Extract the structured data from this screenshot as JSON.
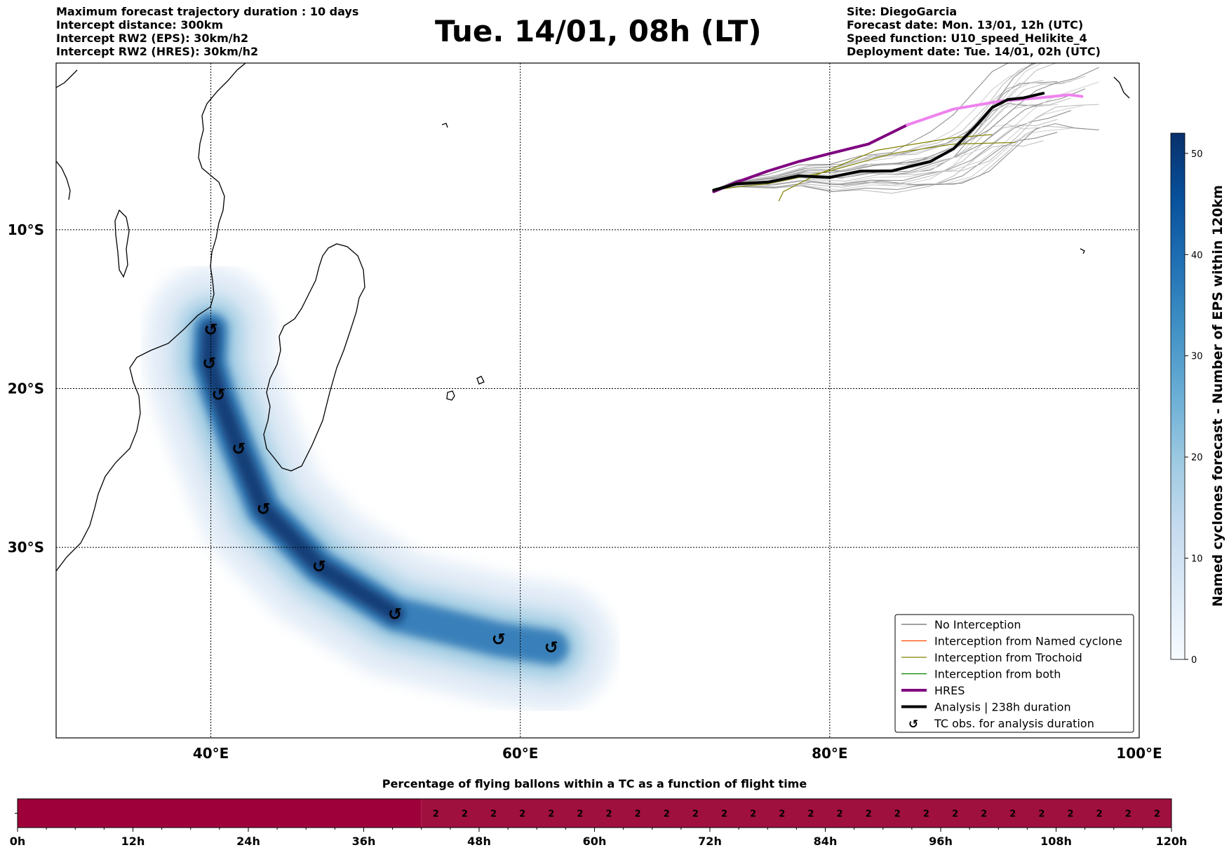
{
  "header": {
    "left": [
      "Maximum forecast trajectory duration : 10 days",
      "Intercept distance: 300km",
      "Intercept RW2 (EPS):  30km/h2",
      "Intercept RW2 (HRES): 30km/h2"
    ],
    "title": "Tue. 14/01, 08h (LT)",
    "right": [
      "Site: DiegoGarcia",
      "Forecast date: Mon. 13/01, 12h (UTC)",
      "Speed function: U10_speed_Helikite_4",
      "Deployment date: Tue. 14/01, 02h (UTC)"
    ]
  },
  "colors": {
    "blue_dark": "#08306b",
    "blue_light": "#deebf7",
    "hres": "#800080",
    "hres_light": "#ee82ee",
    "analysis": "#000000",
    "no_interception": "#696969",
    "named_cyclone": "#ff4500",
    "trochoid": "#808000",
    "both": "#008000",
    "bar": "#9e003a"
  },
  "chart_data": [
    {
      "type": "map",
      "x_ticks": [
        "40°E",
        "60°E",
        "80°E",
        "100°E"
      ],
      "x_tick_values": [
        40,
        60,
        80,
        100
      ],
      "y_ticks": [
        "10°S",
        "20°S",
        "30°S"
      ],
      "y_tick_values": [
        -10,
        -20,
        -30
      ],
      "xlim": [
        30,
        100
      ],
      "ylim": [
        -42,
        0.5
      ],
      "grid": true,
      "legend_position": "lower-right",
      "legend": [
        {
          "label": "No Interception",
          "color": "#696969",
          "style": "thin-line"
        },
        {
          "label": "Interception from Named cyclone",
          "color": "#ff4500",
          "style": "thin-line"
        },
        {
          "label": "Interception from Trochoid",
          "color": "#808000",
          "style": "thin-line"
        },
        {
          "label": "Interception from both",
          "color": "#008000",
          "style": "thin-line"
        },
        {
          "label": "HRES",
          "color": "#800080",
          "style": "thick-line"
        },
        {
          "label": "Analysis | 238h duration",
          "color": "#000000",
          "style": "thick-line"
        },
        {
          "label": "TC obs. for analysis duration",
          "color": "#000000",
          "style": "marker"
        }
      ],
      "tc_observations": [
        {
          "lon": 40.0,
          "lat": -16.3
        },
        {
          "lon": 39.9,
          "lat": -18.4
        },
        {
          "lon": 40.5,
          "lat": -20.4
        },
        {
          "lon": 41.8,
          "lat": -23.8
        },
        {
          "lon": 43.4,
          "lat": -27.6
        },
        {
          "lon": 47.0,
          "lat": -31.2
        },
        {
          "lon": 51.9,
          "lat": -34.2
        },
        {
          "lon": 58.6,
          "lat": -35.8
        },
        {
          "lon": 62.0,
          "lat": -36.3
        }
      ],
      "analysis_track": [
        [
          72.5,
          -7.5
        ],
        [
          74,
          -7.1
        ],
        [
          76,
          -7.0
        ],
        [
          78,
          -6.6
        ],
        [
          80,
          -6.7
        ],
        [
          82,
          -6.3
        ],
        [
          84,
          -6.3
        ],
        [
          85.2,
          -6.0
        ],
        [
          86.5,
          -5.7
        ],
        [
          88,
          -4.9
        ],
        [
          89.5,
          -3.4
        ],
        [
          90.5,
          -2.3
        ],
        [
          91.5,
          -1.8
        ],
        [
          92.5,
          -1.7
        ],
        [
          93.8,
          -1.4
        ]
      ],
      "hres_track": [
        [
          72.5,
          -7.6
        ],
        [
          74,
          -7.0
        ],
        [
          76,
          -6.3
        ],
        [
          78,
          -5.7
        ],
        [
          80,
          -5.2
        ],
        [
          82.5,
          -4.6
        ],
        [
          85,
          -3.4
        ],
        [
          88,
          -2.4
        ],
        [
          91,
          -1.9
        ],
        [
          93.5,
          -1.7
        ],
        [
          95.5,
          -1.5
        ],
        [
          96.3,
          -1.6
        ]
      ],
      "trochoid_tracks": [
        [
          [
            72.5,
            -7.5
          ],
          [
            74,
            -7.3
          ],
          [
            76,
            -7.1
          ],
          [
            80,
            -6.3
          ],
          [
            84,
            -5.2
          ],
          [
            88,
            -4.6
          ],
          [
            92,
            -4.5
          ]
        ],
        [
          [
            76.7,
            -8.2
          ],
          [
            77,
            -7.6
          ],
          [
            79,
            -6.6
          ],
          [
            83,
            -5.0
          ],
          [
            88,
            -4.2
          ],
          [
            90.5,
            -4.0
          ]
        ]
      ],
      "density_max": 52,
      "density_track": [
        [
          40.0,
          -16.3
        ],
        [
          39.9,
          -18.4
        ],
        [
          40.5,
          -20.4
        ],
        [
          41.8,
          -23.8
        ],
        [
          43.4,
          -27.6
        ],
        [
          47.0,
          -31.2
        ],
        [
          51.9,
          -34.2
        ],
        [
          58.6,
          -35.8
        ],
        [
          62.0,
          -36.3
        ]
      ]
    },
    {
      "type": "colorbar",
      "label": "Named cyclones forecast - Number of EPS within 120km",
      "ticks": [
        "0",
        "10",
        "20",
        "30",
        "40",
        "50"
      ],
      "range": [
        0,
        52
      ],
      "colors": [
        "#f7fbff",
        "#deebf7",
        "#c6dbef",
        "#9ecae1",
        "#6baed6",
        "#4292c6",
        "#2171b5",
        "#08519c",
        "#08306b"
      ]
    },
    {
      "type": "heatmap",
      "title": "Percentage of flying ballons within a TC as a function of flight time",
      "x_ticks": [
        "0h",
        "12h",
        "24h",
        "36h",
        "48h",
        "60h",
        "72h",
        "84h",
        "96h",
        "108h",
        "120h"
      ],
      "range_hours": [
        0,
        120
      ],
      "empty_until_hours": 42,
      "labeled_from_hours": 42,
      "cell_hours": 3,
      "cell_value": "2"
    }
  ]
}
